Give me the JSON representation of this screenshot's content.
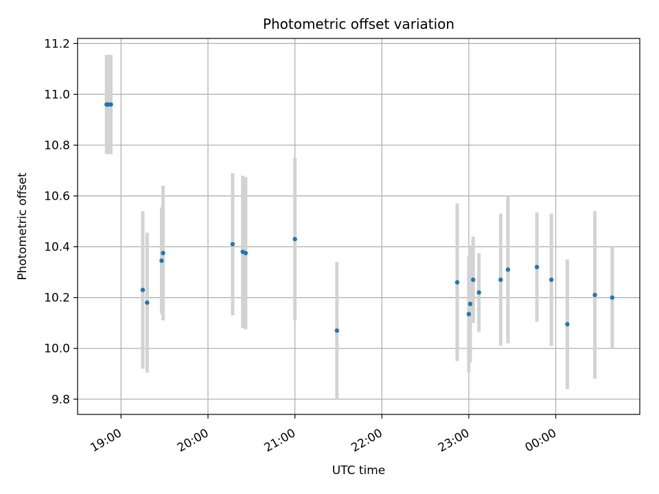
{
  "chart_data": {
    "type": "scatter",
    "title": "Photometric offset variation",
    "xlabel": "UTC time",
    "ylabel": "Photometric offset",
    "x_is_time": true,
    "xlim": [
      "18:30",
      "00:58"
    ],
    "ylim": [
      9.74,
      11.22
    ],
    "x_ticks": [
      {
        "t": "19:00",
        "label": "19:00"
      },
      {
        "t": "20:00",
        "label": "20:00"
      },
      {
        "t": "21:00",
        "label": "21:00"
      },
      {
        "t": "22:00",
        "label": "22:00"
      },
      {
        "t": "23:00",
        "label": "23:00"
      },
      {
        "t": "00:00",
        "label": "00:00"
      }
    ],
    "y_ticks": [
      {
        "v": 9.8,
        "label": "9.8"
      },
      {
        "v": 10.0,
        "label": "10.0"
      },
      {
        "v": 10.2,
        "label": "10.2"
      },
      {
        "v": 10.4,
        "label": "10.4"
      },
      {
        "v": 10.6,
        "label": "10.6"
      },
      {
        "v": 10.8,
        "label": "10.8"
      },
      {
        "v": 11.0,
        "label": "11.0"
      },
      {
        "v": 11.2,
        "label": "11.2"
      }
    ],
    "grid": true,
    "marker_color": "#1f77b4",
    "errorbar_color": "#d3d3d3",
    "points": [
      {
        "t": "18:50",
        "y": 10.96,
        "err": 0.195
      },
      {
        "t": "18:51",
        "y": 10.96,
        "err": 0.195
      },
      {
        "t": "18:53",
        "y": 10.96,
        "err": 0.195
      },
      {
        "t": "19:15",
        "y": 10.23,
        "err": 0.31
      },
      {
        "t": "19:18",
        "y": 10.18,
        "err": 0.275
      },
      {
        "t": "19:28",
        "y": 10.345,
        "err": 0.21
      },
      {
        "t": "19:29",
        "y": 10.375,
        "err": 0.265
      },
      {
        "t": "20:17",
        "y": 10.41,
        "err": 0.28
      },
      {
        "t": "20:24",
        "y": 10.38,
        "err": 0.3
      },
      {
        "t": "20:26",
        "y": 10.375,
        "err": 0.3
      },
      {
        "t": "21:00",
        "y": 10.43,
        "err": 0.32
      },
      {
        "t": "21:29",
        "y": 10.07,
        "err": 0.27
      },
      {
        "t": "22:52",
        "y": 10.26,
        "err": 0.31
      },
      {
        "t": "23:00",
        "y": 10.135,
        "err": 0.23
      },
      {
        "t": "23:01",
        "y": 10.175,
        "err": 0.23
      },
      {
        "t": "23:03",
        "y": 10.27,
        "err": 0.17
      },
      {
        "t": "23:07",
        "y": 10.22,
        "err": 0.155
      },
      {
        "t": "23:22",
        "y": 10.27,
        "err": 0.26
      },
      {
        "t": "23:27",
        "y": 10.31,
        "err": 0.29
      },
      {
        "t": "23:47",
        "y": 10.32,
        "err": 0.215
      },
      {
        "t": "23:57",
        "y": 10.27,
        "err": 0.26
      },
      {
        "t": "00:08",
        "y": 10.095,
        "err": 0.255
      },
      {
        "t": "00:27",
        "y": 10.21,
        "err": 0.33
      },
      {
        "t": "00:39",
        "y": 10.2,
        "err": 0.2
      }
    ]
  }
}
